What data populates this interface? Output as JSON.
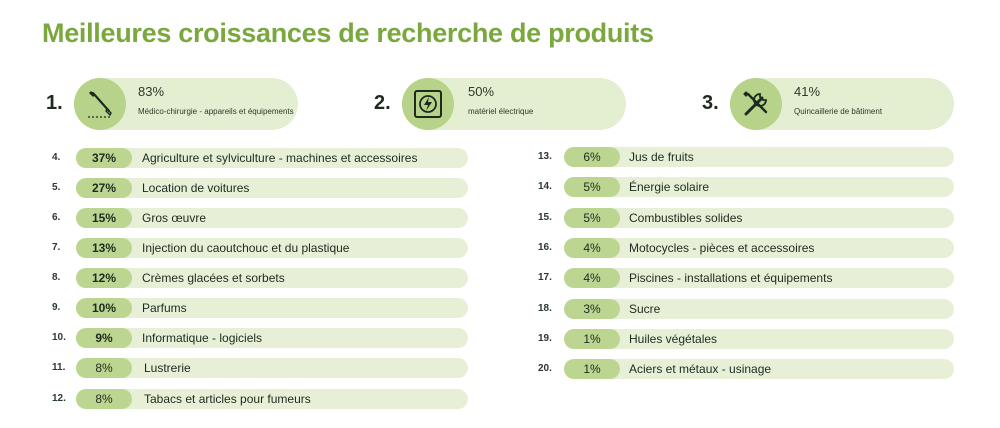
{
  "title": "Meilleures croissances de recherche de produits",
  "top3": [
    {
      "rank": "1.",
      "pct": "83%",
      "label": "Médico-chirurgie - appareils et équipements",
      "icon": "scalpel-icon"
    },
    {
      "rank": "2.",
      "pct": "50%",
      "label": "matériel électrique",
      "icon": "electric-socket-icon"
    },
    {
      "rank": "3.",
      "pct": "41%",
      "label": "Quincaillerie de bâtiment",
      "icon": "tools-icon"
    }
  ],
  "left_list": [
    {
      "rank": "4.",
      "pct": "37%",
      "label": "Agriculture et sylviculture - machines et accessoires"
    },
    {
      "rank": "5.",
      "pct": "27%",
      "label": "Location de voitures"
    },
    {
      "rank": "6.",
      "pct": "15%",
      "label": "Gros œuvre"
    },
    {
      "rank": "7.",
      "pct": "13%",
      "label": "Injection du caoutchouc et du plastique"
    },
    {
      "rank": "8.",
      "pct": "12%",
      "label": "Crèmes glacées et sorbets"
    },
    {
      "rank": "9.",
      "pct": "10%",
      "label": "Parfums"
    },
    {
      "rank": "10.",
      "pct": "9%",
      "label": "Informatique - logiciels"
    },
    {
      "rank": "11.",
      "pct": "8%",
      "label": "Lustrerie"
    },
    {
      "rank": "12.",
      "pct": "8%",
      "label": "Tabacs et articles pour fumeurs"
    }
  ],
  "right_list": [
    {
      "rank": "13.",
      "pct": "6%",
      "label": "Jus de fruits"
    },
    {
      "rank": "14.",
      "pct": "5%",
      "label": "Énergie solaire"
    },
    {
      "rank": "15.",
      "pct": "5%",
      "label": "Combustibles solides"
    },
    {
      "rank": "16.",
      "pct": "4%",
      "label": "Motocycles - pièces et accessoires"
    },
    {
      "rank": "17.",
      "pct": "4%",
      "label": "Piscines - installations et équipements"
    },
    {
      "rank": "18.",
      "pct": "3%",
      "label": "Sucre"
    },
    {
      "rank": "19.",
      "pct": "1%",
      "label": "Huiles végétales"
    },
    {
      "rank": "20.",
      "pct": "1%",
      "label": "Aciers et métaux - usinage"
    }
  ],
  "colors": {
    "title": "#7aa83f",
    "pill_light": "#e7f0d7",
    "pill_badge": "#bcd691",
    "icon_circle": "#b7d38a",
    "text": "#1e2a1f"
  }
}
